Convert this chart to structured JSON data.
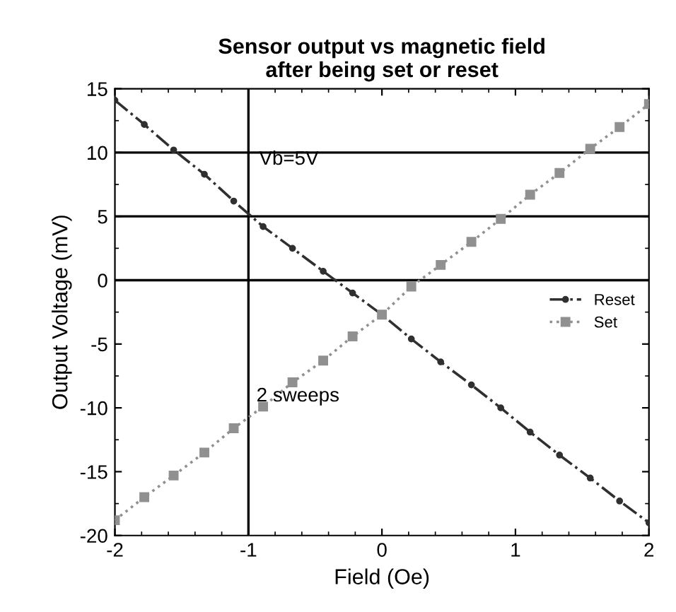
{
  "chart_data": {
    "type": "line",
    "title": "Sensor output vs magnetic field\nafter being set or reset",
    "xlabel": "Field (Oe)",
    "ylabel": "Output Voltage (mV)",
    "annotations": [
      "Vb=5V",
      "2 sweeps"
    ],
    "series": [
      {
        "name": "Reset",
        "color": "#303030",
        "line_style": "dashed",
        "marker": "circle",
        "x": [
          -2,
          -1.78,
          -1.56,
          -1.33,
          -1.11,
          -0.89,
          -0.67,
          -0.44,
          -0.22,
          0,
          0.22,
          0.44,
          0.67,
          0.89,
          1.11,
          1.33,
          1.56,
          1.78,
          2
        ],
        "values": [
          14.1,
          12.2,
          10.2,
          8.3,
          6.2,
          4.2,
          2.5,
          0.7,
          -1.0,
          -2.7,
          -4.6,
          -6.4,
          -8.2,
          -10.0,
          -11.9,
          -13.7,
          -15.5,
          -17.3,
          -19.0
        ]
      },
      {
        "name": "Set",
        "color": "#909090",
        "line_style": "dotted",
        "marker": "square",
        "x": [
          -2,
          -1.78,
          -1.56,
          -1.33,
          -1.11,
          -0.89,
          -0.67,
          -0.44,
          -0.22,
          0,
          0.22,
          0.44,
          0.67,
          0.89,
          1.11,
          1.33,
          1.56,
          1.78,
          2
        ],
        "values": [
          -18.8,
          -17.0,
          -15.3,
          -13.5,
          -11.6,
          -9.9,
          -8.0,
          -6.3,
          -4.4,
          -2.7,
          -0.5,
          1.2,
          3.0,
          4.8,
          6.7,
          8.4,
          10.3,
          12.0,
          13.8
        ]
      }
    ],
    "xlim": [
      -2,
      2
    ],
    "xticks": [
      -2,
      -1,
      0,
      1,
      2
    ],
    "ylim": [
      -20,
      15
    ],
    "yticks": [
      -20,
      -15,
      -10,
      -5,
      0,
      5,
      10,
      15
    ],
    "ref_lines": [
      {
        "axis": "y",
        "value": 10
      },
      {
        "axis": "y",
        "value": 5
      },
      {
        "axis": "y",
        "value": 0
      },
      {
        "axis": "x",
        "value": -1
      }
    ],
    "legend": "right",
    "grid": false
  }
}
